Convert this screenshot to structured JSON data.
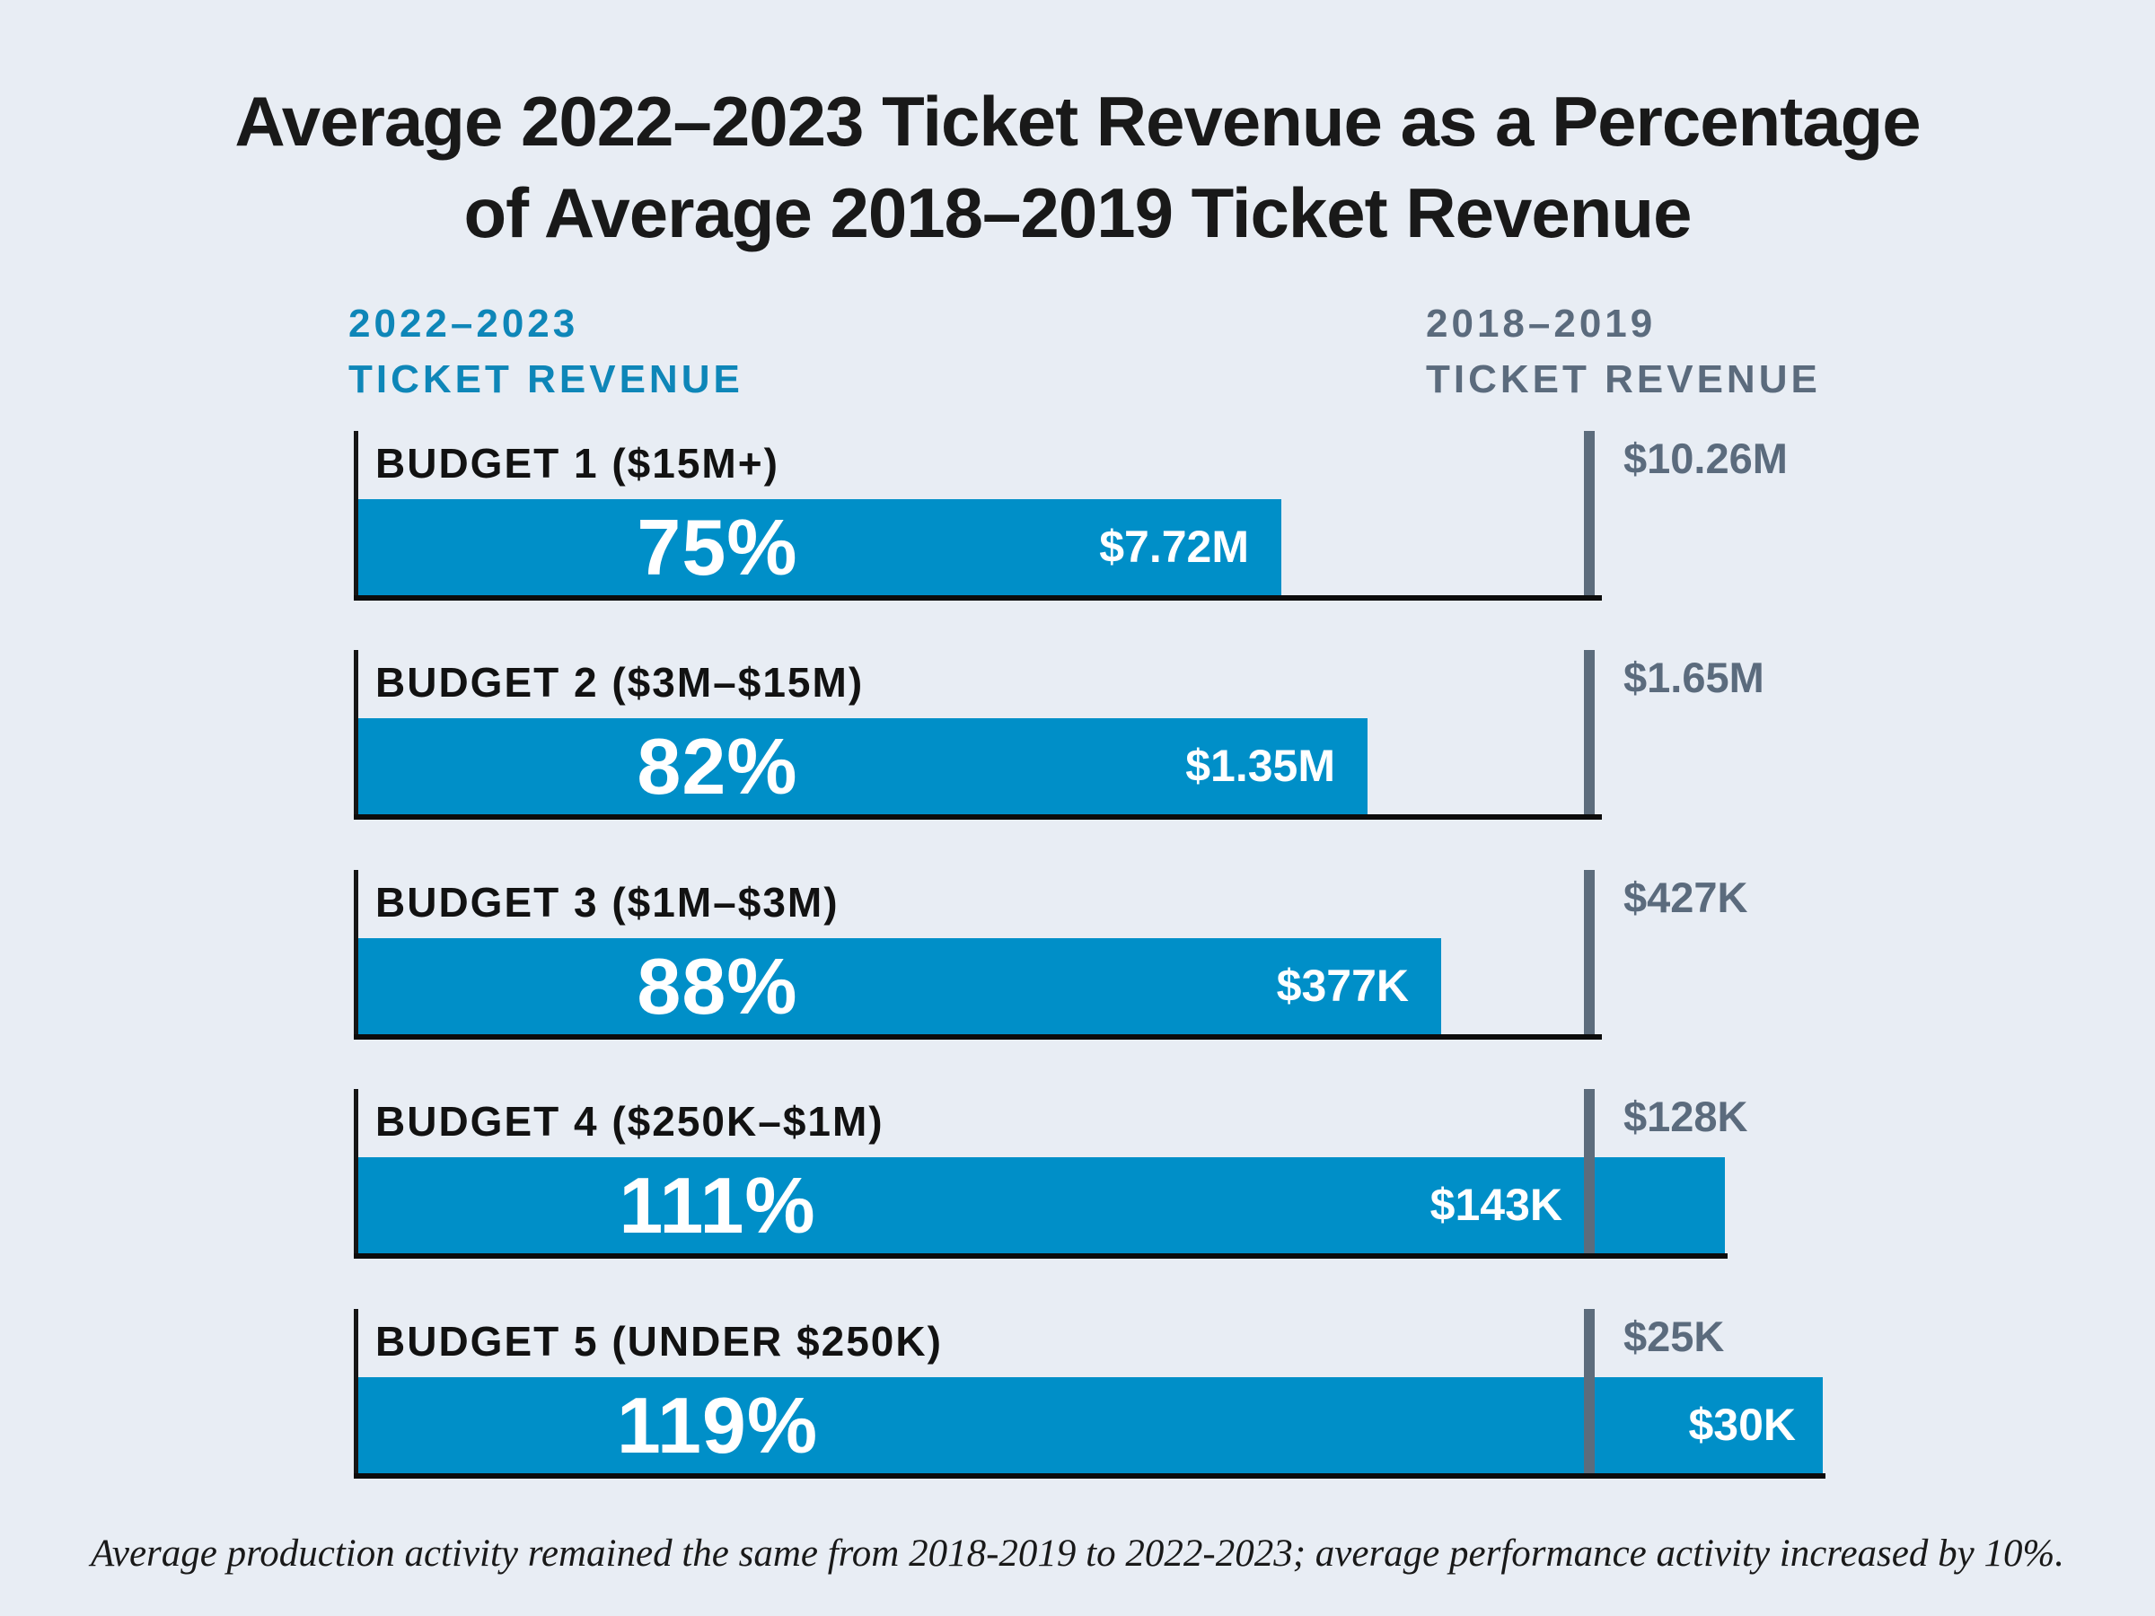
{
  "title": {
    "line1": "Average 2022–2023 Ticket Revenue as a Percentage",
    "line2": "of Average 2018–2019 Ticket Revenue"
  },
  "columns": {
    "left": {
      "line1": "2022–2023",
      "line2": "TICKET REVENUE"
    },
    "right": {
      "line1": "2018–2019",
      "line2": "TICKET REVENUE"
    }
  },
  "rows": [
    {
      "label": "BUDGET 1 ($15M+)",
      "percent": 75,
      "percent_label": "75%",
      "current_value": "$7.72M",
      "reference_value": "$10.26M",
      "value_position": "inside-end"
    },
    {
      "label": "BUDGET 2 ($3M–$15M)",
      "percent": 82,
      "percent_label": "82%",
      "current_value": "$1.35M",
      "reference_value": "$1.65M",
      "value_position": "inside-end"
    },
    {
      "label": "BUDGET 3 ($1M–$3M)",
      "percent": 88,
      "percent_label": "88%",
      "current_value": "$377K",
      "reference_value": "$427K",
      "value_position": "inside-end"
    },
    {
      "label": "BUDGET 4 ($250K–$1M)",
      "percent": 111,
      "percent_label": "111%",
      "current_value": "$143K",
      "reference_value": "$128K",
      "value_position": "before-reference"
    },
    {
      "label": "BUDGET 5 (UNDER $250K)",
      "percent": 119,
      "percent_label": "119%",
      "current_value": "$30K",
      "reference_value": "$25K",
      "value_position": "after-reference"
    }
  ],
  "footnote": "Average production activity remained the same from 2018-2019 to 2022-2023; average performance activity increased by 10%.",
  "colors": {
    "background": "#e8edf4",
    "bar_blue": "#008fc8",
    "header_blue": "#0e86b8",
    "reference_gray": "#5b6b7d",
    "axis_black": "#0c0c0c",
    "title_black": "#191919"
  },
  "chart_data": {
    "type": "bar",
    "title": "Average 2022–2023 Ticket Revenue as a Percentage of Average 2018–2019 Ticket Revenue",
    "categories": [
      "BUDGET 1 ($15M+)",
      "BUDGET 2 ($3M–$15M)",
      "BUDGET 3 ($1M–$3M)",
      "BUDGET 4 ($250K–$1M)",
      "BUDGET 5 (UNDER $250K)"
    ],
    "series": [
      {
        "name": "2022–2023 Ticket Revenue as % of 2018–2019",
        "values": [
          75,
          82,
          88,
          111,
          119
        ],
        "unit": "%"
      },
      {
        "name": "2022–2023 Ticket Revenue",
        "values": [
          "$7.72M",
          "$1.35M",
          "$377K",
          "$143K",
          "$30K"
        ]
      },
      {
        "name": "2018–2019 Ticket Revenue (100% reference)",
        "values": [
          "$10.26M",
          "$1.65M",
          "$427K",
          "$128K",
          "$25K"
        ]
      }
    ],
    "xlabel": "",
    "ylabel": "Percent of 2018–2019 ticket revenue",
    "xlim": [
      0,
      145
    ],
    "reference_line": 100,
    "orientation": "horizontal",
    "grid": false,
    "legend_position": "top",
    "annotation": "Average production activity remained the same from 2018-2019 to 2022-2023; average performance activity increased by 10%."
  }
}
